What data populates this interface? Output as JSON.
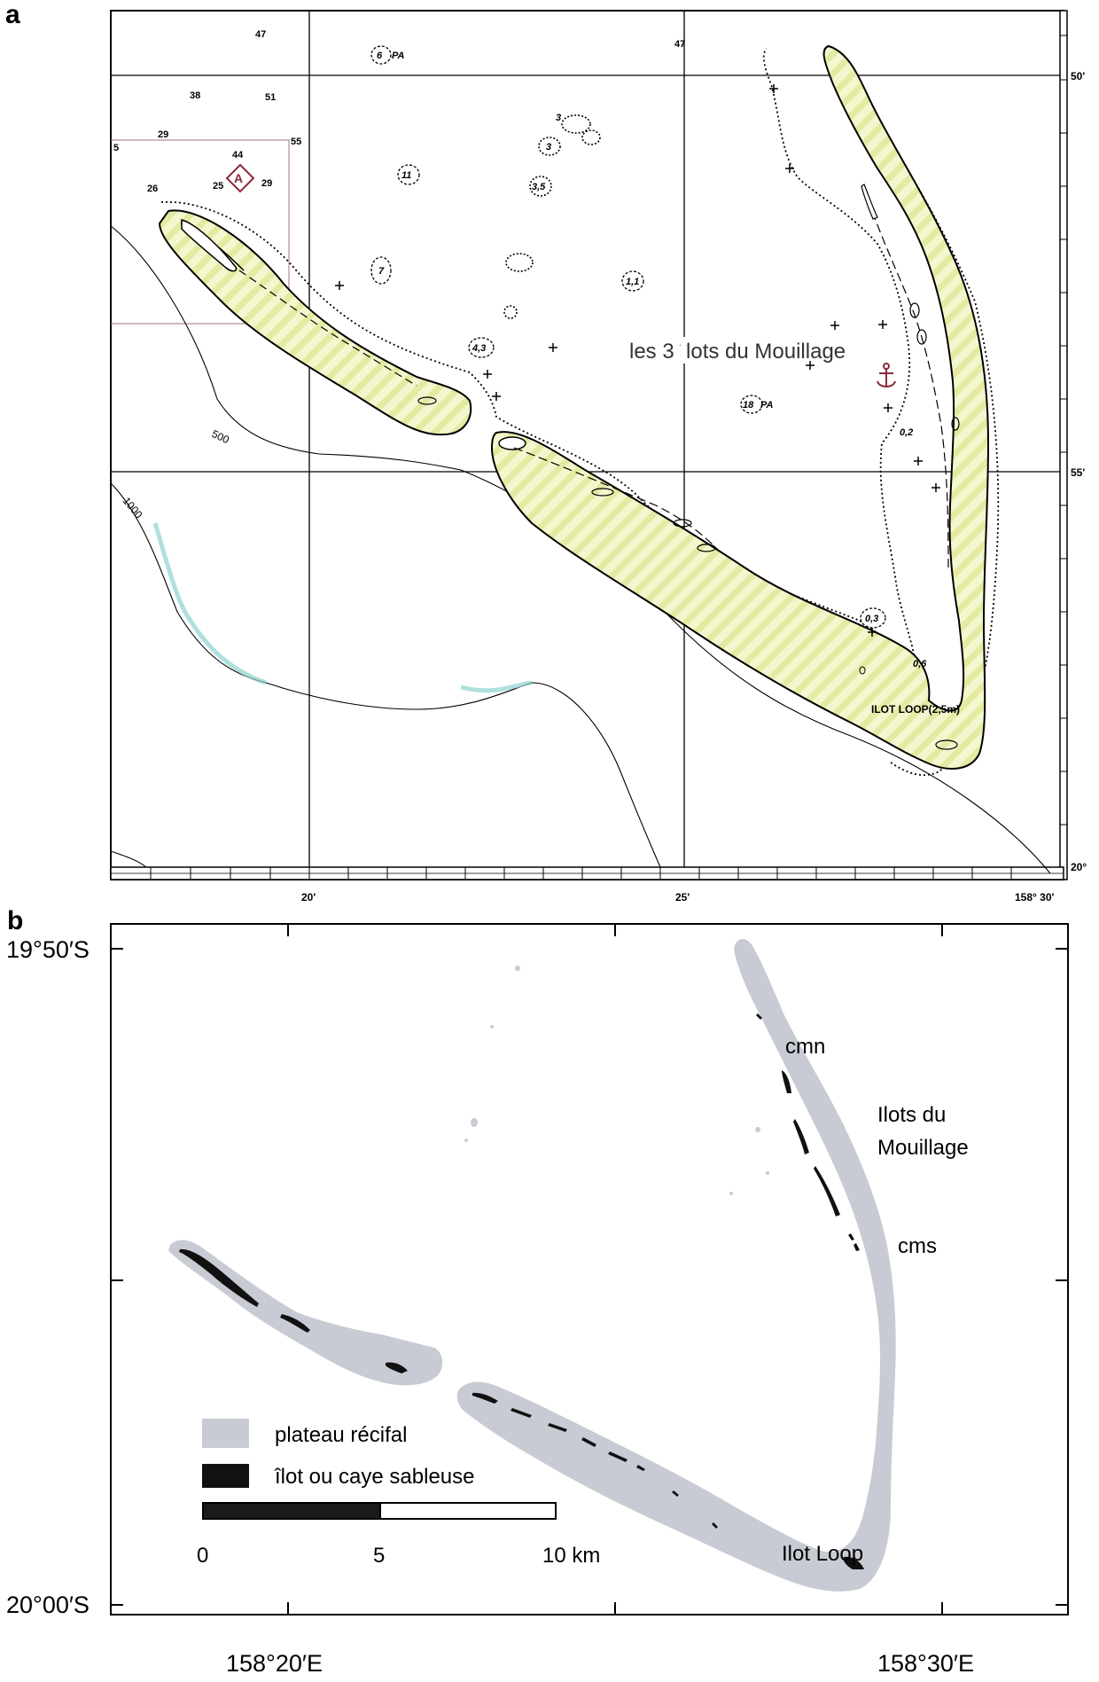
{
  "panel_a": {
    "letter": "a",
    "annotation": "les 3 îlots du Mouillage",
    "island_label": "ILOT LOOP(2,5m)",
    "x_ticks": [
      "20'",
      "25'",
      "158° 30'"
    ],
    "y_ticks": [
      "50'",
      "55'",
      "20°"
    ],
    "contours": [
      "500",
      "1000"
    ],
    "soundings": [
      "47",
      "47",
      "38",
      "51",
      "29",
      "44",
      "55",
      "26",
      "25",
      "29",
      "5"
    ],
    "shoal_labels": [
      "6",
      "PA",
      "3",
      "3",
      "11",
      "3,5",
      "7",
      "1,1",
      "4,3",
      "18",
      "PA",
      "0,2",
      "0,3",
      "0,6",
      "A"
    ]
  },
  "panel_b": {
    "letter": "b",
    "y_ticks": [
      "19°50′S",
      "20°00′S"
    ],
    "x_ticks": [
      "158°20′E",
      "158°30′E"
    ],
    "labels": {
      "cmn": "cmn",
      "ilots_line1": "Ilots du",
      "ilots_line2": "Mouillage",
      "cms": "cms",
      "loop": "Ilot Loop"
    },
    "legend": {
      "plateau": "plateau récifal",
      "ilot": "îlot ou caye sableuse"
    },
    "scale": {
      "labels": [
        "0",
        "5",
        "10 km"
      ]
    }
  },
  "colors": {
    "reef_fill_a": "#f3f4c4",
    "reef_hatch_a": "#e6eda6",
    "contour_1000": "#8fd3cf",
    "plateau_fill_b": "#c8cbd3",
    "islet_fill_b": "#111111",
    "anchor": "#8b2a3a",
    "marker": "#8b2a3a"
  }
}
